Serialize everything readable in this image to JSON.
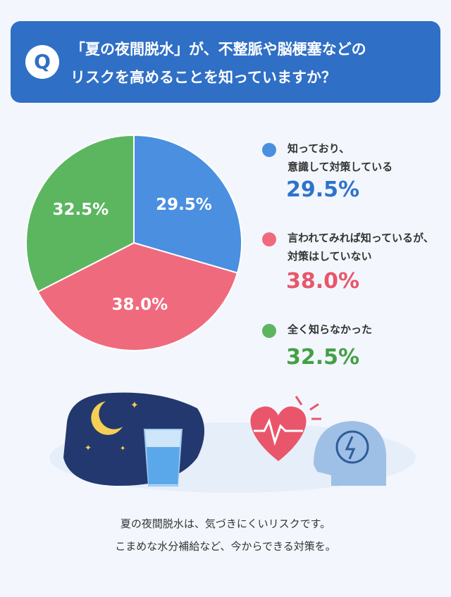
{
  "chart_data": {
    "type": "pie",
    "badge": "Q",
    "title": "「夏の夜間脱水」が、不整脈や脳梗塞などの\nリスクを高めることを知っていますか？",
    "categories": [
      "知っており、\n意識して対策している",
      "言われてみれば知っているが、\n対策はしていない",
      "全く知らなかった"
    ],
    "values": [
      29.5,
      38.0,
      32.5
    ],
    "value_labels": [
      "29.5%",
      "38.0%",
      "32.5%"
    ],
    "colors": [
      "#4a8fe0",
      "#f06a7d",
      "#5cb660"
    ],
    "value_label_colors": [
      "#2f73cc",
      "#e8566b",
      "#43a047"
    ],
    "footer": "夏の夜間脱水は、気づきにくいリスクです。\nこまめな水分補給など、今からできる対策を。"
  }
}
